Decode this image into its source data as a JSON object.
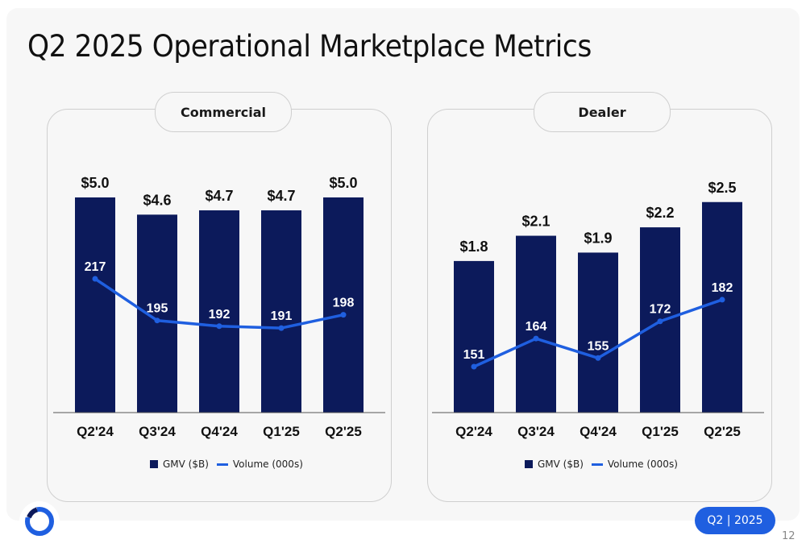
{
  "page": {
    "title": "Q2 2025 Operational Marketplace Metrics",
    "badge": "Q2 | 2025",
    "page_number": "12"
  },
  "colors": {
    "bar": "#0c1a5b",
    "line": "#1f5fe0",
    "accent": "#1f5fe0"
  },
  "icons": {
    "logo": "circle-logo-icon"
  },
  "chart_data": [
    {
      "type": "bar",
      "title": "Commercial",
      "categories": [
        "Q2'24",
        "Q3'24",
        "Q4'24",
        "Q1'25",
        "Q2'25"
      ],
      "series": [
        {
          "name": "GMV ($B)",
          "type": "bar",
          "values": [
            5.0,
            4.6,
            4.7,
            4.7,
            5.0
          ],
          "labels": [
            "$5.0",
            "$4.6",
            "$4.7",
            "$4.7",
            "$5.0"
          ]
        },
        {
          "name": "Volume (000s)",
          "type": "line",
          "values": [
            217,
            195,
            192,
            191,
            198
          ],
          "labels": [
            "217",
            "195",
            "192",
            "191",
            "198"
          ]
        }
      ],
      "legend": "bottom"
    },
    {
      "type": "bar",
      "title": "Dealer",
      "categories": [
        "Q2'24",
        "Q3'24",
        "Q4'24",
        "Q1'25",
        "Q2'25"
      ],
      "series": [
        {
          "name": "GMV ($B)",
          "type": "bar",
          "values": [
            1.8,
            2.1,
            1.9,
            2.2,
            2.5
          ],
          "labels": [
            "$1.8",
            "$2.1",
            "$1.9",
            "$2.2",
            "$2.5"
          ]
        },
        {
          "name": "Volume (000s)",
          "type": "line",
          "values": [
            151,
            164,
            155,
            172,
            182
          ],
          "labels": [
            "151",
            "164",
            "155",
            "172",
            "182"
          ]
        }
      ],
      "legend": "bottom"
    }
  ]
}
